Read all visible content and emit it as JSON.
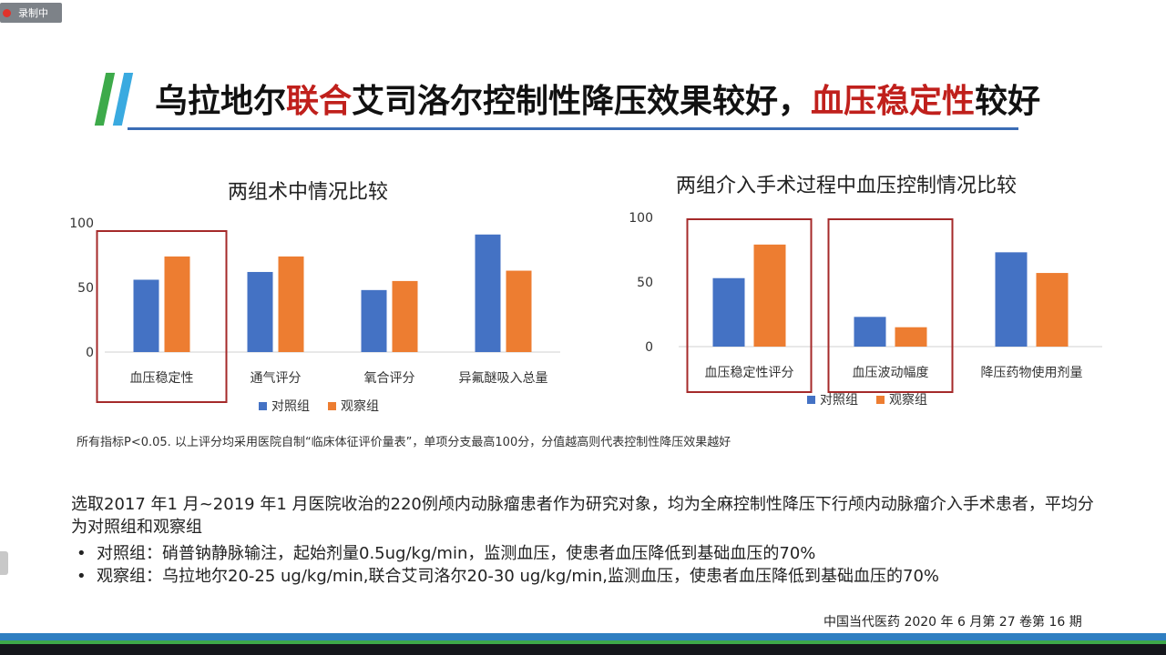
{
  "recording": {
    "label": "录制中"
  },
  "title": {
    "part1": "乌拉地尔",
    "part2_red": "联合",
    "part3": "艾司洛尔控制性降压效果较好，",
    "part4_red": "血压稳定性",
    "part5": "较好"
  },
  "colors": {
    "control": "#4472c4",
    "observe": "#ed7d31",
    "highlight": "#a52a2a",
    "title_red": "#c0201c"
  },
  "chart_data": [
    {
      "type": "bar",
      "title": "两组术中情况比较",
      "categories": [
        "血压稳定性",
        "通气评分",
        "氧合评分",
        "异氟醚吸入总量"
      ],
      "series": [
        {
          "name": "对照组",
          "values": [
            56,
            62,
            48,
            91
          ]
        },
        {
          "name": "观察组",
          "values": [
            74,
            74,
            55,
            63
          ]
        }
      ],
      "ylim": [
        0,
        100
      ],
      "yticks": [
        "100",
        "50",
        "0"
      ],
      "highlighted_categories": [
        "血压稳定性"
      ],
      "legend": "bottom"
    },
    {
      "type": "bar",
      "title": "两组介入手术过程中血压控制情况比较",
      "categories": [
        "血压稳定性评分",
        "血压波动幅度",
        "降压药物使用剂量"
      ],
      "series": [
        {
          "name": "对照组",
          "values": [
            53,
            23,
            73
          ]
        },
        {
          "name": "观察组",
          "values": [
            79,
            15,
            57
          ]
        }
      ],
      "ylim": [
        0,
        100
      ],
      "yticks": [
        "100",
        "50",
        "0"
      ],
      "highlighted_categories": [
        "血压稳定性评分",
        "血压波动幅度"
      ],
      "legend": "bottom"
    }
  ],
  "footnote": "所有指标P<0.05. 以上评分均采用医院自制“临床体征评价量表”，单项分支最高100分，分值越高则代表控制性降压效果越好",
  "body": {
    "intro": "选取2017 年1 月~2019 年1 月医院收治的220例颅内动脉瘤患者作为研究对象，均为全麻控制性降压下行颅内动脉瘤介入手术患者，平均分为对照组和观察组",
    "bullets": [
      "对照组：硝普钠静脉输注，起始剂量0.5ug/kg/min，监测血压，使患者血压降低到基础血压的70%",
      "观察组：乌拉地尔20-25 ug/kg/min,联合艾司洛尔20-30 ug/kg/min,监测血压，使患者血压降低到基础血压的70%"
    ],
    "bullet_symbol": "•"
  },
  "citation": "中国当代医药 2020 年 6 月第 27 卷第 16 期"
}
